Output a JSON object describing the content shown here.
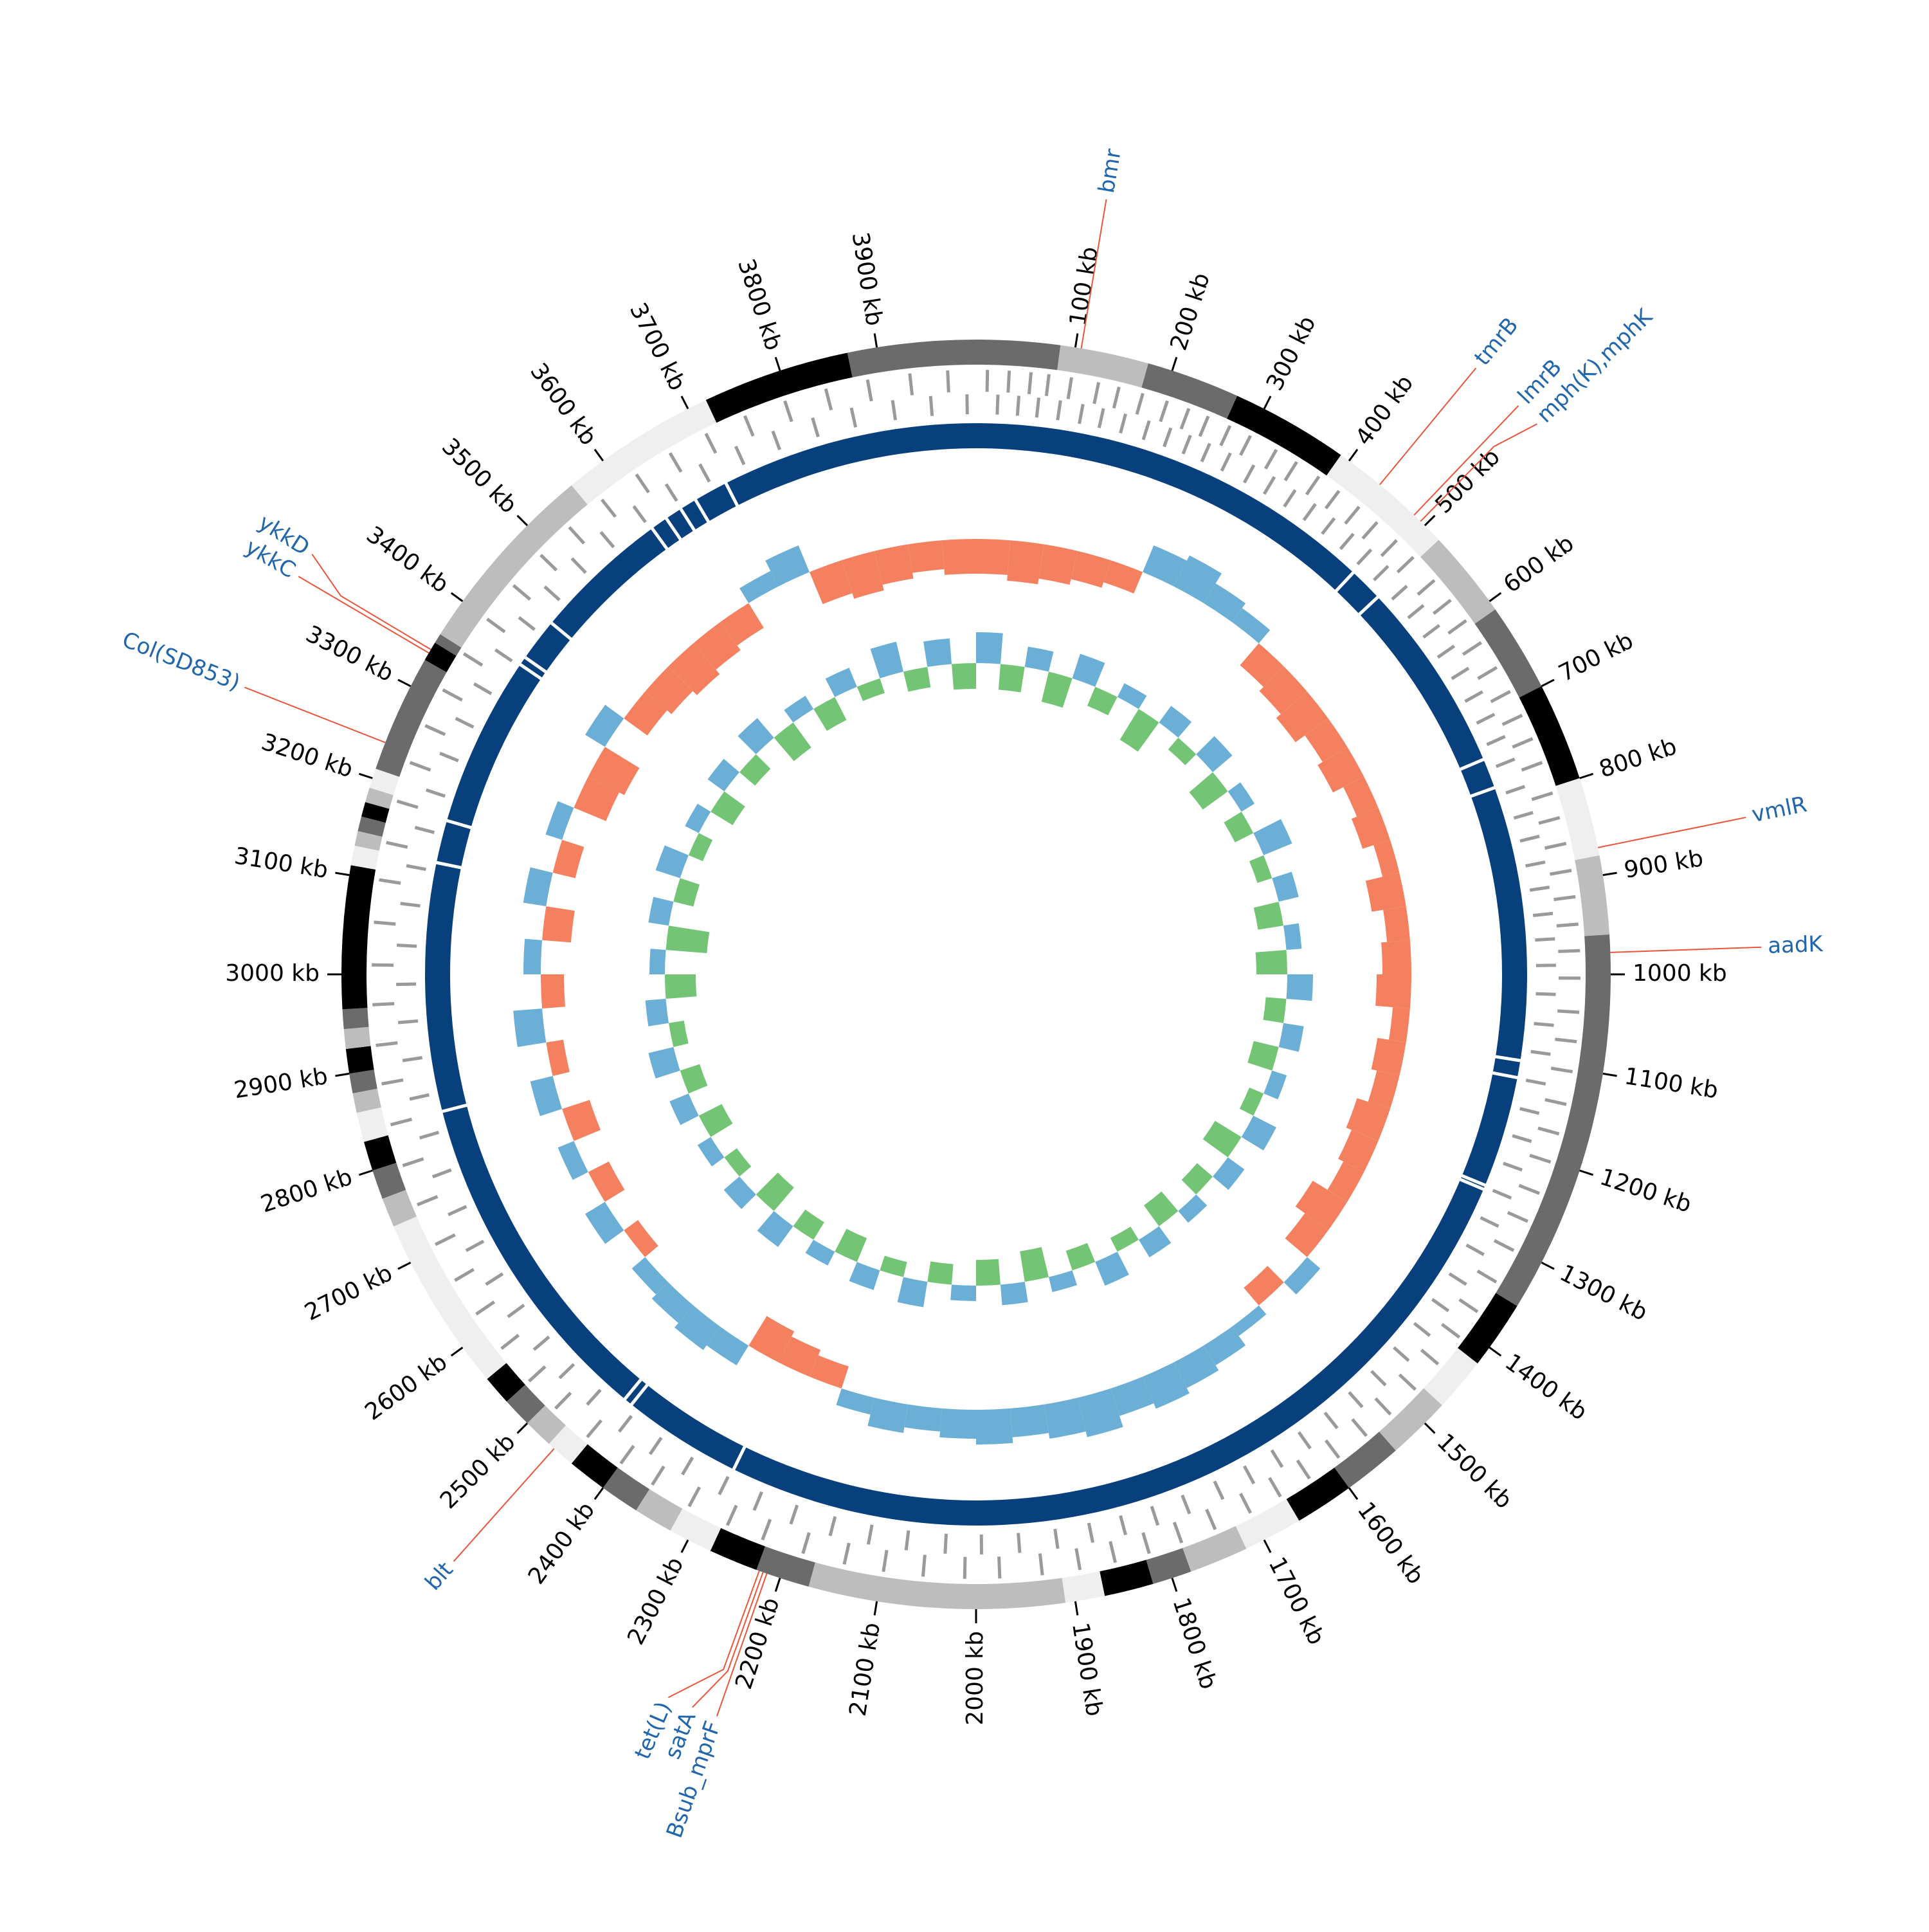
{
  "chart_data": {
    "type": "circos",
    "xlim": [
      0,
      4000
    ],
    "xticks": [
      {
        "value": 100,
        "label": "100 kb"
      },
      {
        "value": 200,
        "label": "200 kb"
      },
      {
        "value": 300,
        "label": "300 kb"
      },
      {
        "value": 400,
        "label": "400 kb"
      },
      {
        "value": 500,
        "label": "500 kb"
      },
      {
        "value": 600,
        "label": "600 kb"
      },
      {
        "value": 700,
        "label": "700 kb"
      },
      {
        "value": 800,
        "label": "800 kb"
      },
      {
        "value": 900,
        "label": "900 kb"
      },
      {
        "value": 1000,
        "label": "1000 kb"
      },
      {
        "value": 1100,
        "label": "1100 kb"
      },
      {
        "value": 1200,
        "label": "1200 kb"
      },
      {
        "value": 1300,
        "label": "1300 kb"
      },
      {
        "value": 1400,
        "label": "1400 kb"
      },
      {
        "value": 1500,
        "label": "1500 kb"
      },
      {
        "value": 1600,
        "label": "1600 kb"
      },
      {
        "value": 1700,
        "label": "1700 kb"
      },
      {
        "value": 1800,
        "label": "1800 kb"
      },
      {
        "value": 1900,
        "label": "1900 kb"
      },
      {
        "value": 2000,
        "label": "2000 kb"
      },
      {
        "value": 2100,
        "label": "2100 kb"
      },
      {
        "value": 2200,
        "label": "2200 kb"
      },
      {
        "value": 2300,
        "label": "2300 kb"
      },
      {
        "value": 2400,
        "label": "2400 kb"
      },
      {
        "value": 2500,
        "label": "2500 kb"
      },
      {
        "value": 2600,
        "label": "2600 kb"
      },
      {
        "value": 2700,
        "label": "2700 kb"
      },
      {
        "value": 2800,
        "label": "2800 kb"
      },
      {
        "value": 2900,
        "label": "2900 kb"
      },
      {
        "value": 3000,
        "label": "3000 kb"
      },
      {
        "value": 3100,
        "label": "3100 kb"
      },
      {
        "value": 3200,
        "label": "3200 kb"
      },
      {
        "value": 3300,
        "label": "3300 kb"
      },
      {
        "value": 3400,
        "label": "3400 kb"
      },
      {
        "value": 3500,
        "label": "3500 kb"
      },
      {
        "value": 3600,
        "label": "3600 kb"
      },
      {
        "value": 3700,
        "label": "3700 kb"
      },
      {
        "value": 3800,
        "label": "3800 kb"
      },
      {
        "value": 3900,
        "label": "3900 kb"
      }
    ],
    "annotation_color": "#2166ac",
    "leader_color": "#e8553a",
    "annotations": [
      {
        "label": "bmr",
        "position": 106
      },
      {
        "label": "tmrB",
        "position": 439
      },
      {
        "label": "lmrB",
        "position": 485
      },
      {
        "label": "mph(K),mphK",
        "position": 494
      },
      {
        "label": "vmlR",
        "position": 872
      },
      {
        "label": "aadK",
        "position": 978
      },
      {
        "label": "Bsub_mprF",
        "position": 2214
      },
      {
        "label": "satA",
        "position": 2218
      },
      {
        "label": "tet(L)",
        "position": 2222
      },
      {
        "label": "blt",
        "position": 2463
      },
      {
        "label": "Col(SD853)",
        "position": 3238
      },
      {
        "label": "ykkC",
        "position": 3338
      },
      {
        "label": "ykkD",
        "position": 3342
      }
    ],
    "contigs": [
      [
        0,
        85,
        "#6b6b6b"
      ],
      [
        85,
        175,
        "#bdbdbd"
      ],
      [
        175,
        270,
        "#6b6b6b"
      ],
      [
        270,
        390,
        "#000000"
      ],
      [
        390,
        520,
        "#efefef"
      ],
      [
        520,
        610,
        "#bdbdbd"
      ],
      [
        610,
        700,
        "#6b6b6b"
      ],
      [
        700,
        800,
        "#000000"
      ],
      [
        800,
        880,
        "#efefef"
      ],
      [
        880,
        960,
        "#bdbdbd"
      ],
      [
        960,
        1350,
        "#6b6b6b"
      ],
      [
        1350,
        1420,
        "#000000"
      ],
      [
        1420,
        1475,
        "#efefef"
      ],
      [
        1475,
        1540,
        "#bdbdbd"
      ],
      [
        1540,
        1600,
        "#6b6b6b"
      ],
      [
        1600,
        1660,
        "#000000"
      ],
      [
        1660,
        1720,
        "#efefef"
      ],
      [
        1720,
        1780,
        "#bdbdbd"
      ],
      [
        1780,
        1820,
        "#6b6b6b"
      ],
      [
        1820,
        1870,
        "#000000"
      ],
      [
        1870,
        1910,
        "#efefef"
      ],
      [
        1910,
        2170,
        "#bdbdbd"
      ],
      [
        2170,
        2225,
        "#6b6b6b"
      ],
      [
        2225,
        2275,
        "#000000"
      ],
      [
        2275,
        2320,
        "#efefef"
      ],
      [
        2320,
        2360,
        "#bdbdbd"
      ],
      [
        2360,
        2400,
        "#6b6b6b"
      ],
      [
        2400,
        2440,
        "#000000"
      ],
      [
        2440,
        2470,
        "#efefef"
      ],
      [
        2470,
        2500,
        "#bdbdbd"
      ],
      [
        2500,
        2530,
        "#6b6b6b"
      ],
      [
        2530,
        2560,
        "#000000"
      ],
      [
        2560,
        2740,
        "#efefef"
      ],
      [
        2740,
        2770,
        "#bdbdbd"
      ],
      [
        2770,
        2800,
        "#6b6b6b"
      ],
      [
        2800,
        2830,
        "#000000"
      ],
      [
        2830,
        2860,
        "#efefef"
      ],
      [
        2860,
        2880,
        "#bdbdbd"
      ],
      [
        2880,
        2900,
        "#6b6b6b"
      ],
      [
        2900,
        2925,
        "#000000"
      ],
      [
        2925,
        2945,
        "#bdbdbd"
      ],
      [
        2945,
        2965,
        "#6b6b6b"
      ],
      [
        2965,
        3110,
        "#000000"
      ],
      [
        3110,
        3130,
        "#efefef"
      ],
      [
        3130,
        3145,
        "#bdbdbd"
      ],
      [
        3145,
        3160,
        "#6b6b6b"
      ],
      [
        3160,
        3175,
        "#000000"
      ],
      [
        3175,
        3190,
        "#bdbdbd"
      ],
      [
        3190,
        3210,
        "#efefef"
      ],
      [
        3210,
        3330,
        "#6b6b6b"
      ],
      [
        3330,
        3350,
        "#000000"
      ],
      [
        3350,
        3360,
        "#6b6b6b"
      ],
      [
        3360,
        3560,
        "#bdbdbd"
      ],
      [
        3560,
        3720,
        "#efefef"
      ],
      [
        3720,
        3870,
        "#000000"
      ],
      [
        3870,
        4000,
        "#6b6b6b"
      ]
    ],
    "gene_color": "#9a9a9a",
    "genes_plus": [
      12,
      35,
      58,
      77,
      101,
      130,
      152,
      178,
      205,
      229,
      251,
      276,
      300,
      331,
      356,
      384,
      410,
      437,
      462,
      490,
      515,
      548,
      575,
      602,
      630,
      661,
      690,
      718,
      745,
      772,
      806,
      833,
      861,
      890,
      918,
      947,
      975,
      1004,
      1040,
      1071,
      1103,
      1138,
      1170,
      1201,
      1236,
      1268,
      1302,
      1340,
      1377,
      1410,
      1446,
      1482,
      1519,
      1553,
      1590,
      1628,
      1664,
      1700,
      1741,
      1779,
      1815,
      1852,
      1890,
      1930,
      1975,
      2012,
      2056,
      2098,
      2140,
      2185,
      2230,
      2270,
      2315,
      2360,
      2400,
      2445,
      2490,
      2530,
      2575,
      2620,
      2662,
      2705,
      2751,
      2795,
      2840,
      2884,
      2925,
      2968,
      3010,
      3055,
      3100,
      3140,
      3185,
      3228,
      3270,
      3312,
      3356,
      3400,
      3445,
      3488,
      3530,
      3575,
      3620,
      3662,
      3705,
      3750,
      3795,
      3840,
      3885,
      3930,
      3970
    ],
    "genes_minus": [
      24,
      47,
      69,
      93,
      118,
      141,
      166,
      193,
      218,
      241,
      264,
      289,
      318,
      344,
      371,
      398,
      424,
      451,
      477,
      503,
      533,
      561,
      589,
      617,
      646,
      676,
      704,
      731,
      758,
      790,
      820,
      847,
      876,
      904,
      933,
      961,
      990,
      1022,
      1056,
      1088,
      1121,
      1154,
      1186,
      1219,
      1252,
      1286,
      1321,
      1359,
      1394,
      1428,
      1464,
      1501,
      1536,
      1572,
      1609,
      1646,
      1682,
      1720,
      1760,
      1797,
      1834,
      1871,
      1910,
      1952,
      1994,
      2034,
      2077,
      2119,
      2162,
      2207,
      2250,
      2292,
      2338,
      2380,
      2422,
      2468,
      2510,
      2552,
      2598,
      2641,
      2684,
      2728,
      2773,
      2818,
      2862,
      2905,
      2947,
      2989,
      3032,
      3078,
      3120,
      3163,
      3206,
      3249,
      3291,
      3334,
      3378,
      3422,
      3466,
      3509,
      3552,
      3598,
      3641,
      3684,
      3728,
      3772,
      3818,
      3862,
      3908,
      3950,
      3990
    ],
    "ring_color": "#08407e",
    "ring_gaps": [
      480,
      520,
      745,
      780,
      1100,
      1120,
      1250,
      1255,
      2290,
      2430,
      2440,
      2840,
      3130,
      3180,
      3380,
      3390,
      3440,
      3600,
      3620,
      3640,
      3660,
      3700
    ],
    "track_lim": [
      -1,
      1
    ],
    "bins": [
      0,
      50,
      100,
      150,
      200,
      250,
      300,
      350,
      400,
      450,
      500,
      550,
      600,
      650,
      700,
      750,
      800,
      850,
      900,
      950,
      1000,
      1050,
      1100,
      1150,
      1200,
      1250,
      1300,
      1350,
      1400,
      1450,
      1500,
      1550,
      1600,
      1650,
      1700,
      1750,
      1800,
      1850,
      1900,
      1950,
      2000,
      2050,
      2100,
      2150,
      2200,
      2250,
      2300,
      2350,
      2400,
      2450,
      2500,
      2550,
      2600,
      2650,
      2700,
      2750,
      2800,
      2850,
      2900,
      2950,
      3000,
      3050,
      3100,
      3150,
      3200,
      3250,
      3300,
      3350,
      3400,
      3450,
      3500,
      3550,
      3600,
      3650,
      3700,
      3750,
      3800,
      3850,
      3900,
      3950,
      4000
    ],
    "gc_skew": {
      "pos_color": "#6baed6",
      "neg_color": "#f4805f",
      "values": [
        -0.6,
        -0.7,
        -0.6,
        -0.5,
        -0.4,
        0.5,
        0.6,
        0.4,
        0.3,
        -0.5,
        -0.6,
        -0.7,
        -0.5,
        -0.6,
        -0.4,
        -0.5,
        -0.3,
        -0.6,
        -0.4,
        -0.5,
        -0.6,
        -0.3,
        -0.5,
        -0.4,
        -0.6,
        -0.5,
        -0.4,
        -0.7,
        -0.5,
        0.3,
        -0.4,
        0.2,
        0.4,
        0.5,
        0.6,
        0.5,
        0.7,
        0.6,
        0.5,
        0.6,
        0.5,
        0.4,
        0.5,
        0.3,
        -0.4,
        -0.5,
        -0.6,
        0.4,
        0.5,
        0.4,
        0.3,
        -0.3,
        0.4,
        -0.4,
        0.3,
        -0.5,
        0.4,
        -0.3,
        0.5,
        -0.4,
        0.3,
        -0.5,
        0.4,
        -0.4,
        0.3,
        -0.6,
        -0.7,
        0.4,
        -0.5,
        -0.6,
        -0.7,
        -0.6,
        -0.5,
        0.3,
        0.5,
        -0.6,
        -0.7,
        -0.6,
        -0.5,
        -0.6
      ]
    },
    "gc_content": {
      "pos_color": "#6baed6",
      "neg_color": "#74c476",
      "values": [
        0.6,
        -0.5,
        0.4,
        -0.6,
        0.5,
        -0.4,
        0.3,
        -0.7,
        0.4,
        -0.3,
        0.5,
        -0.6,
        0.3,
        -0.4,
        0.6,
        -0.3,
        0.4,
        -0.5,
        0.3,
        -0.6,
        0.5,
        -0.4,
        0.4,
        -0.5,
        0.3,
        -0.3,
        0.5,
        -0.6,
        0.4,
        -0.4,
        0.3,
        -0.5,
        0.4,
        -0.3,
        0.5,
        -0.4,
        0.3,
        -0.6,
        0.4,
        -0.5,
        0.3,
        -0.4,
        0.5,
        -0.3,
        0.4,
        -0.5,
        0.3,
        -0.4,
        0.5,
        -0.6,
        0.4,
        -0.3,
        0.3,
        -0.5,
        0.4,
        -0.4,
        0.5,
        -0.3,
        0.4,
        -0.6,
        0.3,
        -0.8,
        0.4,
        -0.4,
        0.5,
        -0.3,
        0.3,
        -0.5,
        0.4,
        -0.4,
        0.5,
        -0.6,
        0.3,
        -0.5,
        0.4,
        -0.3,
        0.6,
        -0.4,
        0.5,
        -0.5
      ]
    }
  }
}
